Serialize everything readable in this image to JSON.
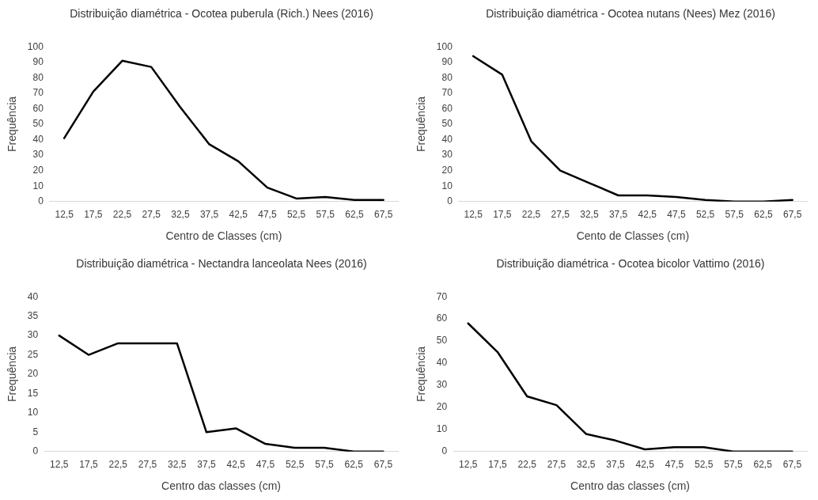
{
  "chart_data": [
    {
      "type": "line",
      "title": "Distribuição diamétrica - Ocotea puberula (Rich.) Nees (2016)",
      "xlabel": "Centro de Classes (cm)",
      "ylabel": "Frequência",
      "categories": [
        "12,5",
        "17,5",
        "22,5",
        "27,5",
        "32,5",
        "37,5",
        "42,5",
        "47,5",
        "52,5",
        "57,5",
        "62,5",
        "67,5"
      ],
      "series": [
        {
          "color": "#000000",
          "values": [
            41,
            71,
            91,
            87,
            61,
            37,
            26,
            9,
            2,
            3,
            1,
            1
          ]
        }
      ],
      "ylim": [
        0,
        100
      ],
      "yticks": [
        0,
        10,
        20,
        30,
        40,
        50,
        60,
        70,
        80,
        90,
        100
      ],
      "grid": false,
      "legend": false,
      "marker": "none",
      "line_style": "solid"
    },
    {
      "type": "line",
      "title": "Distribuição diamétrica - Ocotea nutans (Nees) Mez (2016)",
      "xlabel": "Cento de Classes (cm)",
      "ylabel": "Frequência",
      "categories": [
        "12,5",
        "17,5",
        "22,5",
        "27,5",
        "32,5",
        "37,5",
        "42,5",
        "47,5",
        "52,5",
        "57,5",
        "62,5",
        "67,5"
      ],
      "series": [
        {
          "color": "#000000",
          "values": [
            94,
            82,
            39,
            20,
            12,
            4,
            4,
            3,
            1,
            0,
            0,
            1
          ]
        }
      ],
      "ylim": [
        0,
        100
      ],
      "yticks": [
        0,
        10,
        20,
        30,
        40,
        50,
        60,
        70,
        80,
        90,
        100
      ],
      "grid": false,
      "legend": false,
      "marker": "none",
      "line_style": "solid"
    },
    {
      "type": "line",
      "title": "Distribuição diamétrica - Nectandra lanceolata Nees (2016)",
      "xlabel": "Centro das classes (cm)",
      "ylabel": "Frequência",
      "categories": [
        "12,5",
        "17,5",
        "22,5",
        "27,5",
        "32,5",
        "37,5",
        "42,5",
        "47,5",
        "52,5",
        "57,5",
        "62,5",
        "67,5"
      ],
      "series": [
        {
          "color": "#000000",
          "values": [
            30,
            25,
            28,
            28,
            28,
            5,
            6,
            2,
            1,
            1,
            0,
            0
          ]
        }
      ],
      "ylim": [
        0,
        40
      ],
      "yticks": [
        0,
        5,
        10,
        15,
        20,
        25,
        30,
        35,
        40
      ],
      "grid": false,
      "legend": false,
      "marker": "none",
      "line_style": "solid"
    },
    {
      "type": "line",
      "title": "Distribuição diamétrica - Ocotea bicolor Vattimo (2016)",
      "xlabel": "Centro das classes (cm)",
      "ylabel": "Frequência",
      "categories": [
        "12,5",
        "17,5",
        "22,5",
        "27,5",
        "32,5",
        "37,5",
        "42,5",
        "47,5",
        "52,5",
        "57,5",
        "62,5",
        "67,5"
      ],
      "series": [
        {
          "color": "#000000",
          "values": [
            58,
            45,
            25,
            21,
            8,
            5,
            1,
            2,
            2,
            0,
            0,
            0
          ]
        }
      ],
      "ylim": [
        0,
        70
      ],
      "yticks": [
        0,
        10,
        20,
        30,
        40,
        50,
        60,
        70
      ],
      "grid": false,
      "legend": false,
      "marker": "none",
      "line_style": "solid"
    }
  ]
}
